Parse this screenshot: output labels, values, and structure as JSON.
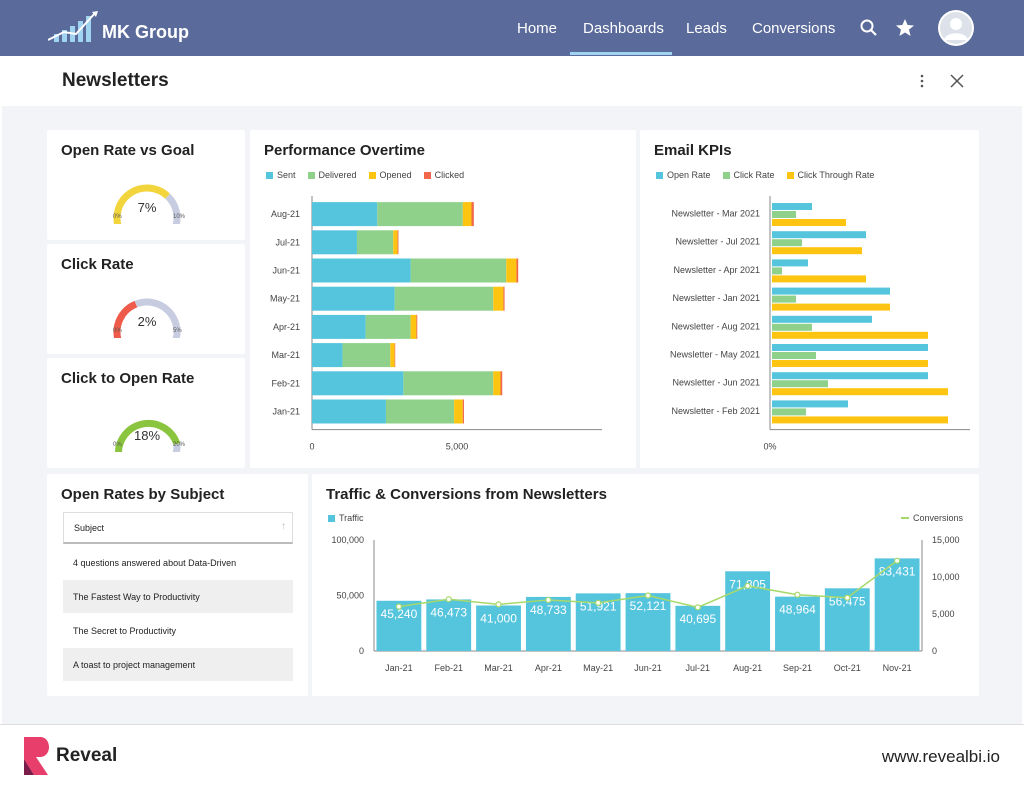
{
  "brand": {
    "name": "MK Group"
  },
  "nav": {
    "items": [
      "Home",
      "Dashboards",
      "Leads",
      "Conversions"
    ],
    "active": "Dashboards"
  },
  "page": {
    "title": "Newsletters"
  },
  "gauges": [
    {
      "title": "Open Rate vs Goal",
      "value": "7%",
      "min": "0%",
      "max": "10%",
      "fraction": 0.7,
      "color": "#f2d43c",
      "rest": "#c8cce0"
    },
    {
      "title": "Click Rate",
      "value": "2%",
      "min": "0%",
      "max": "5%",
      "fraction": 0.4,
      "color": "#ef5b4b",
      "rest": "#c8cce0"
    },
    {
      "title": "Click to Open Rate",
      "value": "18%",
      "min": "0%",
      "max": "20%",
      "fraction": 0.9,
      "color": "#8bc53f",
      "rest": "#c8cce0"
    }
  ],
  "performance": {
    "title": "Performance Overtime",
    "legend": [
      "Sent",
      "Delivered",
      "Opened",
      "Clicked"
    ],
    "colors": [
      "#55c4dd",
      "#8fd18b",
      "#fdc512",
      "#f2684b"
    ],
    "categories": [
      "Aug-21",
      "Jul-21",
      "Jun-21",
      "May-21",
      "Apr-21",
      "Mar-21",
      "Feb-21",
      "Jan-21"
    ],
    "xticks": [
      "0",
      "5,000"
    ]
  },
  "kpis": {
    "title": "Email KPIs",
    "legend": [
      "Open Rate",
      "Click Rate",
      "Click Through Rate"
    ],
    "colors": [
      "#55c4dd",
      "#8fd18b",
      "#fdc512"
    ],
    "categories": [
      "Newsletter - Mar 2021",
      "Newsletter - Jul 2021",
      "Newsletter - Apr 2021",
      "Newsletter - Jan 2021",
      "Newsletter - Aug 2021",
      "Newsletter - May 2021",
      "Newsletter - Jun 2021",
      "Newsletter - Feb 2021"
    ],
    "xtick": "0%"
  },
  "subjects": {
    "title": "Open Rates by Subject",
    "header": "Subject",
    "rows": [
      "4 questions answered about Data-Driven",
      "The Fastest Way to Productivity",
      "The Secret to Productivity",
      "A toast to project management"
    ]
  },
  "chart_data": [
    {
      "type": "bar",
      "stacked": true,
      "orientation": "horizontal",
      "title": "Performance Overtime",
      "categories": [
        "Aug-21",
        "Jul-21",
        "Jun-21",
        "May-21",
        "Apr-21",
        "Mar-21",
        "Feb-21",
        "Jan-21"
      ],
      "series": [
        {
          "name": "Sent",
          "values": [
            2250,
            1550,
            3400,
            2850,
            1850,
            1050,
            3150,
            2550
          ]
        },
        {
          "name": "Delivered",
          "values": [
            2950,
            1250,
            3300,
            3400,
            1550,
            1650,
            3100,
            2350
          ]
        },
        {
          "name": "Opened",
          "values": [
            300,
            150,
            350,
            350,
            200,
            150,
            250,
            300
          ]
        },
        {
          "name": "Clicked",
          "values": [
            80,
            30,
            60,
            40,
            30,
            20,
            60,
            40
          ]
        }
      ],
      "xlim": [
        0,
        10000
      ]
    },
    {
      "type": "bar",
      "orientation": "horizontal",
      "title": "Email KPIs",
      "categories": [
        "Newsletter - Mar 2021",
        "Newsletter - Jul 2021",
        "Newsletter - Apr 2021",
        "Newsletter - Jan 2021",
        "Newsletter - Aug 2021",
        "Newsletter - May 2021",
        "Newsletter - Jun 2021",
        "Newsletter - Feb 2021"
      ],
      "series": [
        {
          "name": "Open Rate",
          "values": [
            20,
            47,
            18,
            59,
            50,
            78,
            78,
            38
          ]
        },
        {
          "name": "Click Rate",
          "values": [
            12,
            15,
            5,
            12,
            20,
            22,
            28,
            17
          ]
        },
        {
          "name": "Click Through Rate",
          "values": [
            37,
            45,
            47,
            59,
            78,
            78,
            88,
            88
          ]
        }
      ],
      "xlim": [
        0,
        100
      ]
    },
    {
      "type": "bar",
      "title": "Traffic & Conversions from Newsletters",
      "categories": [
        "Jan-21",
        "Feb-21",
        "Mar-21",
        "Apr-21",
        "May-21",
        "Jun-21",
        "Jul-21",
        "Aug-21",
        "Sep-21",
        "Oct-21",
        "Nov-21"
      ],
      "series": [
        {
          "name": "Traffic",
          "type": "bar",
          "axis": "left",
          "values": [
            45240,
            46473,
            41000,
            48733,
            51921,
            52121,
            40695,
            71805,
            48964,
            56475,
            83431
          ],
          "labels": [
            "45,240",
            "46,473",
            "41,000",
            "48,733",
            "51,921",
            "52,121",
            "40,695",
            "71,805",
            "48,964",
            "56,475",
            "83,431"
          ]
        },
        {
          "name": "Conversions",
          "type": "line",
          "axis": "right",
          "values": [
            6000,
            7000,
            6300,
            6900,
            6500,
            7500,
            5900,
            8800,
            7600,
            7200,
            12200
          ]
        }
      ],
      "ylim_left": [
        0,
        100000
      ],
      "ylim_right": [
        0,
        15000
      ],
      "yticks_left": [
        "100,000",
        "50,000",
        "0"
      ],
      "yticks_right": [
        "15,000",
        "10,000",
        "5,000",
        "0"
      ]
    }
  ],
  "traffic": {
    "title": "Traffic & Conversions from Newsletters",
    "legend_left": "Traffic",
    "legend_right": "Conversions",
    "bar_color": "#55c4dd",
    "line_color": "#a6d96a"
  },
  "footer": {
    "brand": "Reveal",
    "url": "www.revealbi.io"
  }
}
